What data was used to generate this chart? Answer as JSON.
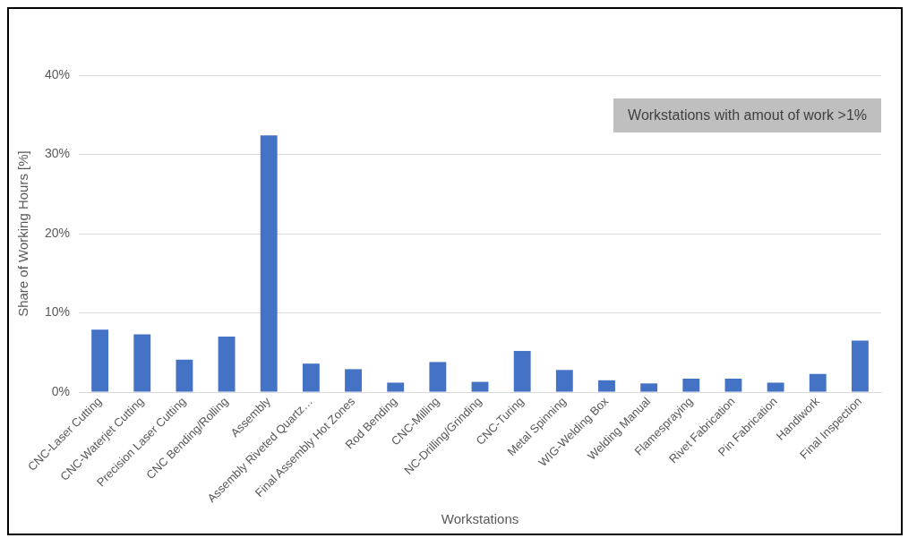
{
  "chart_data": {
    "type": "bar",
    "xlabel": "Workstations",
    "ylabel": "Share of Working Hours [%]",
    "categories": [
      "CNC-Laser Cutting",
      "CNC-Waterjet Cutting",
      "Precision Laser Cutting",
      "CNC Bending/Rolling",
      "Assembly",
      "Assembly Riveted Quartz…",
      "Final Assembly Hot Zones",
      "Rod Bending",
      "CNC-Milling",
      "NC-Drilling/Grinding",
      "CNC-Turing",
      "Metal Spinning",
      "WIG-Welding Box",
      "Welding Manual",
      "Flamespraying",
      "Rivet Fabrication",
      "Pin Fabrication",
      "Handiwork",
      "Final Inspection"
    ],
    "values": [
      7.9,
      7.3,
      4.1,
      7.0,
      32.4,
      3.6,
      2.9,
      1.2,
      3.8,
      1.3,
      5.2,
      2.8,
      1.5,
      1.1,
      1.7,
      1.7,
      1.2,
      2.3,
      6.5
    ],
    "color": "#4472c4",
    "ylim": [
      0,
      40
    ],
    "yticks": [
      {
        "value": 0,
        "label": "0%"
      },
      {
        "value": 10,
        "label": "10%"
      },
      {
        "value": 20,
        "label": "20%"
      },
      {
        "value": 30,
        "label": "30%"
      },
      {
        "value": 40,
        "label": "40%"
      }
    ],
    "grid": "y",
    "annotations": [
      "Workstations with amout of work  >1%"
    ]
  }
}
